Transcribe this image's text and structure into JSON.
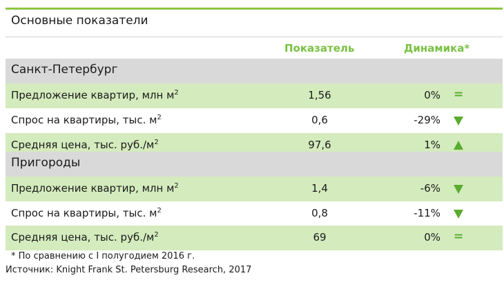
{
  "title": "Основные показатели",
  "headers": {
    "value": "Показатель",
    "dynamics": "Динамика*"
  },
  "groups": [
    {
      "name": "Санкт-Петербург",
      "rows": [
        {
          "label": "Предложение квартир, млн м",
          "value": "1,56",
          "dynamics": "0%",
          "indicator": "equal-icon"
        },
        {
          "label": "Спрос на квартиры, тыс. м",
          "value": "0,6",
          "dynamics": "-29%",
          "indicator": "arrow-down-icon"
        },
        {
          "label": "Средняя цена, тыс. руб./м",
          "value": "97,6",
          "dynamics": "1%",
          "indicator": "arrow-up-icon"
        }
      ]
    },
    {
      "name": "Пригороды",
      "rows": [
        {
          "label": "Предложение квартир, млн м",
          "value": "1,4",
          "dynamics": "-6%",
          "indicator": "arrow-down-icon"
        },
        {
          "label": "Спрос на квартиры, тыс. м",
          "value": "0,8",
          "dynamics": "-11%",
          "indicator": "arrow-down-icon"
        },
        {
          "label": "Средняя цена, тыс. руб./м",
          "value": "69",
          "dynamics": "0%",
          "indicator": "equal-icon"
        }
      ]
    }
  ],
  "unit_superscript": "2",
  "equal_symbol": "=",
  "footnote": "* По сравнению с I полугодием 2016 г.",
  "source": "Источник: Knight Frank St. Petersburg Research, 2017",
  "colors": {
    "accent": "#7ac143",
    "shaded_row": "#d4ebbd",
    "group_row": "#d9d9d9",
    "indicator": "#5aab2e"
  }
}
